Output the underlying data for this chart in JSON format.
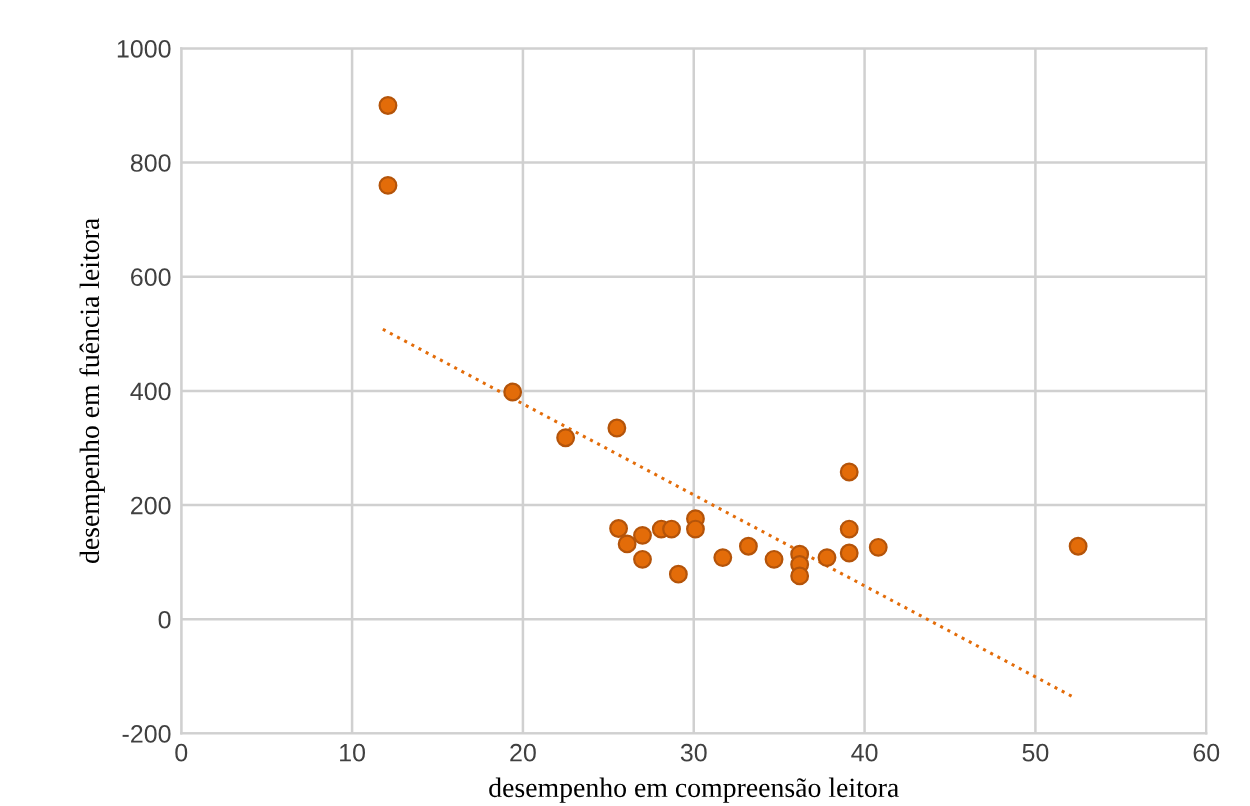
{
  "chart_data": {
    "type": "scatter",
    "xlabel": "desempenho em compreensão leitora",
    "ylabel": "desempenho em fuência leitora",
    "xlim": [
      0,
      60
    ],
    "xticks": [
      0,
      10,
      20,
      30,
      40,
      50,
      60
    ],
    "ylim": [
      -200,
      1000
    ],
    "yticks": [
      -200,
      0,
      200,
      400,
      600,
      800,
      1000
    ],
    "grid": true,
    "marker": "circle",
    "series": [
      {
        "color": "#e36c09",
        "x": [
          12.1,
          12.1,
          19.4,
          22.5,
          25.5,
          25.6,
          26.1,
          27.0,
          27.0,
          28.1,
          28.7,
          29.1,
          30.1,
          30.1,
          31.7,
          33.2,
          34.7,
          36.2,
          36.2,
          36.2,
          37.8,
          39.1,
          39.1,
          39.1,
          40.8,
          52.5
        ],
        "values": [
          900,
          760,
          398,
          318,
          335,
          159,
          132,
          147,
          105,
          158,
          158,
          79,
          176,
          158,
          108,
          128,
          105,
          114,
          96,
          76,
          108,
          258,
          158,
          116,
          126,
          128
        ]
      },
      {
        "type": "line",
        "color": "#e36c09",
        "marker": "none",
        "line_style": "dotted",
        "x": [
          11.8,
          52.2
        ],
        "values": [
          508,
          -136
        ]
      }
    ]
  }
}
